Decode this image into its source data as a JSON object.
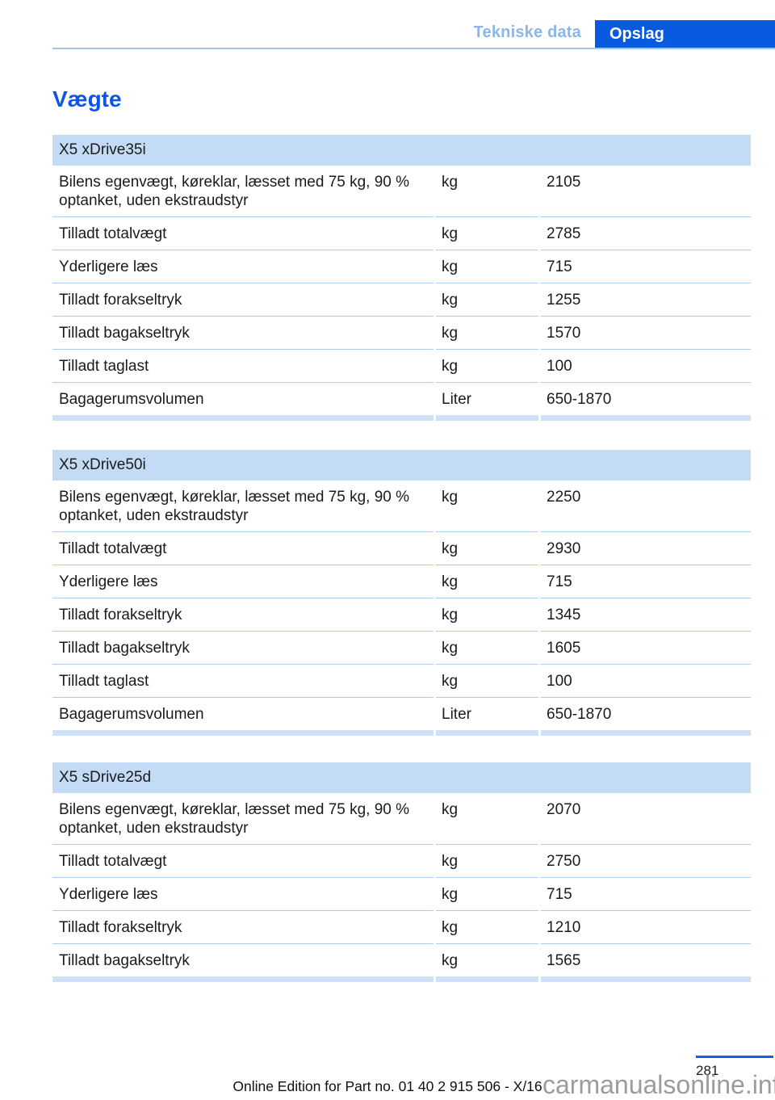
{
  "header": {
    "section_tab": "Tekniske data",
    "active_tab": "Opslag"
  },
  "title": "Vægte",
  "tables": [
    {
      "title": "X5 xDrive35i",
      "rows": [
        {
          "label": "Bilens egenvægt, køreklar, læsset med 75 kg, 90 % optanket, uden ekstraudstyr",
          "unit": "kg",
          "value": "2105"
        },
        {
          "label": "Tilladt totalvægt",
          "unit": "kg",
          "value": "2785"
        },
        {
          "label": "Yderligere læs",
          "unit": "kg",
          "value": "715"
        },
        {
          "label": "Tilladt forakseltryk",
          "unit": "kg",
          "value": "1255"
        },
        {
          "label": "Tilladt bagakseltryk",
          "unit": "kg",
          "value": "1570"
        },
        {
          "label": "Tilladt taglast",
          "unit": "kg",
          "value": "100"
        },
        {
          "label": "Bagagerumsvolumen",
          "unit": "Liter",
          "value": "650-1870"
        }
      ]
    },
    {
      "title": "X5 xDrive50i",
      "rows": [
        {
          "label": "Bilens egenvægt, køreklar, læsset med 75 kg, 90 % optanket, uden ekstraudstyr",
          "unit": "kg",
          "value": "2250"
        },
        {
          "label": "Tilladt totalvægt",
          "unit": "kg",
          "value": "2930"
        },
        {
          "label": "Yderligere læs",
          "unit": "kg",
          "value": "715"
        },
        {
          "label": "Tilladt forakseltryk",
          "unit": "kg",
          "value": "1345"
        },
        {
          "label": "Tilladt bagakseltryk",
          "unit": "kg",
          "value": "1605"
        },
        {
          "label": "Tilladt taglast",
          "unit": "kg",
          "value": "100"
        },
        {
          "label": "Bagagerumsvolumen",
          "unit": "Liter",
          "value": "650-1870"
        }
      ]
    },
    {
      "title": "X5 sDrive25d",
      "rows": [
        {
          "label": "Bilens egenvægt, køreklar, læsset med 75 kg, 90 % optanket, uden ekstraudstyr",
          "unit": "kg",
          "value": "2070"
        },
        {
          "label": "Tilladt totalvægt",
          "unit": "kg",
          "value": "2750"
        },
        {
          "label": "Yderligere læs",
          "unit": "kg",
          "value": "715"
        },
        {
          "label": "Tilladt forakseltryk",
          "unit": "kg",
          "value": "1210"
        },
        {
          "label": "Tilladt bagakseltryk",
          "unit": "kg",
          "value": "1565"
        }
      ]
    }
  ],
  "footer": {
    "page_number": "281",
    "edition_text": "Online Edition for Part no. 01 40 2 915 506 - X/16",
    "watermark": "carmanualsonline.info"
  },
  "colors": {
    "accent_blue": "#0a5ae1",
    "tab_inactive_blue": "#8cb6e8",
    "title_blue": "#0d55e6",
    "table_header_bg": "#c3dbf4",
    "row_divider": "#aecde9",
    "table_bottom_bar": "#cfe1f6",
    "footer_rule_blue": "#1d5be0",
    "watermark_gray": "#9c9c9c"
  }
}
